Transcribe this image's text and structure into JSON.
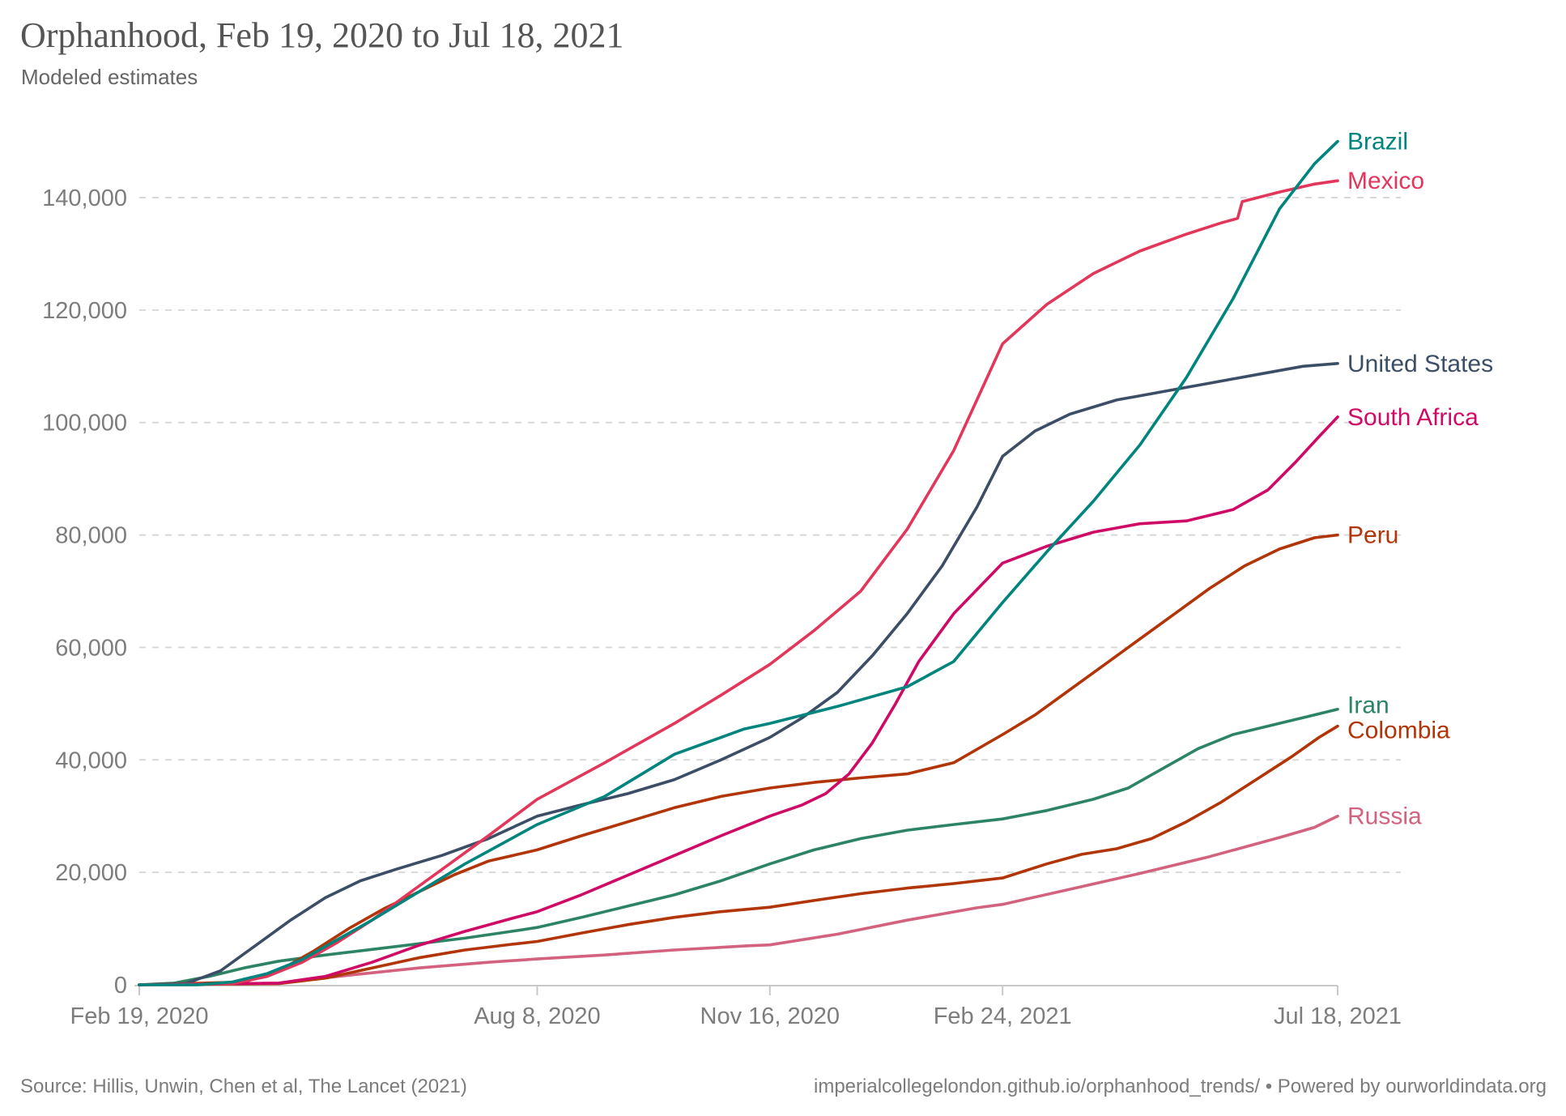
{
  "header": {
    "title": "Orphanhood, Feb 19, 2020 to Jul 18, 2021",
    "subtitle": "Modeled estimates"
  },
  "footer": {
    "source": "Source: Hillis, Unwin, Chen et al, The Lancet (2021)",
    "attribution": "imperialcollegelondon.github.io/orphanhood_trends/ • Powered by ourworldindata.org"
  },
  "chart_data": {
    "type": "line",
    "title": "Orphanhood, Feb 19, 2020 to Jul 18, 2021",
    "subtitle": "Modeled estimates",
    "xlabel": "",
    "ylabel": "",
    "x_unit": "days since Feb 19, 2020",
    "x_range_days": [
      0,
      515
    ],
    "ylim": [
      0,
      150000
    ],
    "grid": "horizontal dashed",
    "legend_position": "labels at right end of each line",
    "y_ticks": [
      {
        "value": 0,
        "label": "0"
      },
      {
        "value": 20000,
        "label": "20,000"
      },
      {
        "value": 40000,
        "label": "40,000"
      },
      {
        "value": 60000,
        "label": "60,000"
      },
      {
        "value": 80000,
        "label": "80,000"
      },
      {
        "value": 100000,
        "label": "100,000"
      },
      {
        "value": 120000,
        "label": "120,000"
      },
      {
        "value": 140000,
        "label": "140,000"
      }
    ],
    "x_ticks": [
      {
        "day": 0,
        "label": "Feb 19, 2020"
      },
      {
        "day": 171,
        "label": "Aug 8, 2020"
      },
      {
        "day": 271,
        "label": "Nov 16, 2020"
      },
      {
        "day": 371,
        "label": "Feb 24, 2021"
      },
      {
        "day": 515,
        "label": "Jul 18, 2021"
      }
    ],
    "series": [
      {
        "name": "Russia",
        "color": "#D2627E",
        "points": [
          [
            0,
            0
          ],
          [
            60,
            300
          ],
          [
            90,
            1700
          ],
          [
            120,
            3000
          ],
          [
            150,
            4000
          ],
          [
            171,
            4600
          ],
          [
            200,
            5300
          ],
          [
            230,
            6200
          ],
          [
            260,
            6900
          ],
          [
            271,
            7100
          ],
          [
            300,
            9000
          ],
          [
            330,
            11500
          ],
          [
            360,
            13700
          ],
          [
            371,
            14300
          ],
          [
            400,
            17000
          ],
          [
            430,
            19800
          ],
          [
            460,
            22800
          ],
          [
            490,
            26200
          ],
          [
            505,
            28000
          ],
          [
            515,
            30000
          ]
        ]
      },
      {
        "name": "Colombia",
        "color": "#B13507",
        "points": [
          [
            0,
            0
          ],
          [
            60,
            200
          ],
          [
            80,
            1200
          ],
          [
            100,
            3000
          ],
          [
            120,
            4800
          ],
          [
            140,
            6200
          ],
          [
            160,
            7200
          ],
          [
            171,
            7700
          ],
          [
            190,
            9200
          ],
          [
            210,
            10700
          ],
          [
            230,
            12000
          ],
          [
            250,
            13000
          ],
          [
            271,
            13800
          ],
          [
            290,
            15000
          ],
          [
            310,
            16200
          ],
          [
            330,
            17200
          ],
          [
            350,
            18000
          ],
          [
            371,
            19000
          ],
          [
            390,
            21500
          ],
          [
            405,
            23200
          ],
          [
            420,
            24200
          ],
          [
            435,
            26000
          ],
          [
            450,
            29000
          ],
          [
            465,
            32500
          ],
          [
            480,
            36500
          ],
          [
            495,
            40500
          ],
          [
            507,
            44000
          ],
          [
            515,
            46000
          ]
        ]
      },
      {
        "name": "Iran",
        "color": "#2C8465",
        "points": [
          [
            0,
            0
          ],
          [
            15,
            300
          ],
          [
            30,
            1500
          ],
          [
            45,
            3000
          ],
          [
            60,
            4200
          ],
          [
            80,
            5300
          ],
          [
            100,
            6300
          ],
          [
            120,
            7300
          ],
          [
            140,
            8300
          ],
          [
            160,
            9500
          ],
          [
            171,
            10200
          ],
          [
            190,
            12000
          ],
          [
            210,
            14000
          ],
          [
            230,
            16000
          ],
          [
            250,
            18500
          ],
          [
            271,
            21500
          ],
          [
            290,
            24000
          ],
          [
            310,
            26000
          ],
          [
            330,
            27500
          ],
          [
            350,
            28500
          ],
          [
            371,
            29500
          ],
          [
            390,
            31000
          ],
          [
            410,
            33000
          ],
          [
            425,
            35000
          ],
          [
            440,
            38500
          ],
          [
            455,
            42000
          ],
          [
            470,
            44500
          ],
          [
            485,
            46000
          ],
          [
            500,
            47500
          ],
          [
            515,
            49000
          ]
        ]
      },
      {
        "name": "Peru",
        "color": "#B13507",
        "points": [
          [
            0,
            0
          ],
          [
            45,
            500
          ],
          [
            60,
            2500
          ],
          [
            75,
            6000
          ],
          [
            90,
            10000
          ],
          [
            105,
            13500
          ],
          [
            120,
            16500
          ],
          [
            135,
            19500
          ],
          [
            150,
            22000
          ],
          [
            171,
            24000
          ],
          [
            190,
            26500
          ],
          [
            210,
            29000
          ],
          [
            230,
            31500
          ],
          [
            250,
            33500
          ],
          [
            271,
            35000
          ],
          [
            290,
            36000
          ],
          [
            310,
            36800
          ],
          [
            330,
            37500
          ],
          [
            350,
            39500
          ],
          [
            371,
            44500
          ],
          [
            385,
            48000
          ],
          [
            400,
            52500
          ],
          [
            415,
            57000
          ],
          [
            430,
            61500
          ],
          [
            445,
            66000
          ],
          [
            460,
            70500
          ],
          [
            475,
            74500
          ],
          [
            490,
            77500
          ],
          [
            505,
            79500
          ],
          [
            515,
            80000
          ]
        ]
      },
      {
        "name": "South Africa",
        "color": "#CF0A66",
        "points": [
          [
            0,
            0
          ],
          [
            60,
            300
          ],
          [
            80,
            1500
          ],
          [
            100,
            4000
          ],
          [
            120,
            7000
          ],
          [
            140,
            9500
          ],
          [
            160,
            11800
          ],
          [
            171,
            13000
          ],
          [
            190,
            16000
          ],
          [
            210,
            19500
          ],
          [
            230,
            23000
          ],
          [
            250,
            26500
          ],
          [
            271,
            30000
          ],
          [
            285,
            32000
          ],
          [
            295,
            34000
          ],
          [
            305,
            37500
          ],
          [
            315,
            43000
          ],
          [
            325,
            50000
          ],
          [
            335,
            57500
          ],
          [
            350,
            66000
          ],
          [
            371,
            75000
          ],
          [
            390,
            78000
          ],
          [
            410,
            80500
          ],
          [
            430,
            82000
          ],
          [
            450,
            82500
          ],
          [
            470,
            84500
          ],
          [
            485,
            88000
          ],
          [
            497,
            93000
          ],
          [
            507,
            97500
          ],
          [
            515,
            101000
          ]
        ]
      },
      {
        "name": "United States",
        "color": "#3C4E66",
        "points": [
          [
            0,
            0
          ],
          [
            20,
            200
          ],
          [
            35,
            2500
          ],
          [
            50,
            7000
          ],
          [
            65,
            11500
          ],
          [
            80,
            15500
          ],
          [
            95,
            18500
          ],
          [
            110,
            20500
          ],
          [
            130,
            23000
          ],
          [
            150,
            26000
          ],
          [
            171,
            30000
          ],
          [
            190,
            32000
          ],
          [
            210,
            34000
          ],
          [
            230,
            36500
          ],
          [
            250,
            40000
          ],
          [
            271,
            44000
          ],
          [
            285,
            47500
          ],
          [
            300,
            52000
          ],
          [
            315,
            58500
          ],
          [
            330,
            66000
          ],
          [
            345,
            74500
          ],
          [
            360,
            85000
          ],
          [
            371,
            94000
          ],
          [
            385,
            98500
          ],
          [
            400,
            101500
          ],
          [
            420,
            104000
          ],
          [
            440,
            105500
          ],
          [
            460,
            107000
          ],
          [
            480,
            108500
          ],
          [
            500,
            110000
          ],
          [
            515,
            110500
          ]
        ]
      },
      {
        "name": "Mexico",
        "color": "#E2365B",
        "points": [
          [
            0,
            0
          ],
          [
            40,
            200
          ],
          [
            55,
            1500
          ],
          [
            70,
            4000
          ],
          [
            85,
            7500
          ],
          [
            100,
            11500
          ],
          [
            115,
            16000
          ],
          [
            130,
            20500
          ],
          [
            150,
            26500
          ],
          [
            171,
            33000
          ],
          [
            200,
            39500
          ],
          [
            230,
            46500
          ],
          [
            250,
            51500
          ],
          [
            271,
            57000
          ],
          [
            290,
            63000
          ],
          [
            310,
            70000
          ],
          [
            330,
            81000
          ],
          [
            350,
            95000
          ],
          [
            371,
            114000
          ],
          [
            390,
            121000
          ],
          [
            410,
            126500
          ],
          [
            430,
            130500
          ],
          [
            450,
            133500
          ],
          [
            465,
            135500
          ],
          [
            472,
            136300
          ],
          [
            474,
            139300
          ],
          [
            490,
            141000
          ],
          [
            505,
            142400
          ],
          [
            515,
            143000
          ]
        ]
      },
      {
        "name": "Brazil",
        "color": "#00847E",
        "points": [
          [
            0,
            0
          ],
          [
            25,
            0
          ],
          [
            40,
            500
          ],
          [
            55,
            2000
          ],
          [
            70,
            4500
          ],
          [
            85,
            8000
          ],
          [
            100,
            11500
          ],
          [
            120,
            16500
          ],
          [
            140,
            21500
          ],
          [
            171,
            28500
          ],
          [
            200,
            33500
          ],
          [
            230,
            41000
          ],
          [
            260,
            45500
          ],
          [
            271,
            46500
          ],
          [
            300,
            49500
          ],
          [
            330,
            53000
          ],
          [
            350,
            57500
          ],
          [
            371,
            68000
          ],
          [
            390,
            77000
          ],
          [
            410,
            86000
          ],
          [
            430,
            96000
          ],
          [
            450,
            108000
          ],
          [
            470,
            122000
          ],
          [
            490,
            138000
          ],
          [
            505,
            146000
          ],
          [
            515,
            150000
          ]
        ]
      }
    ]
  }
}
